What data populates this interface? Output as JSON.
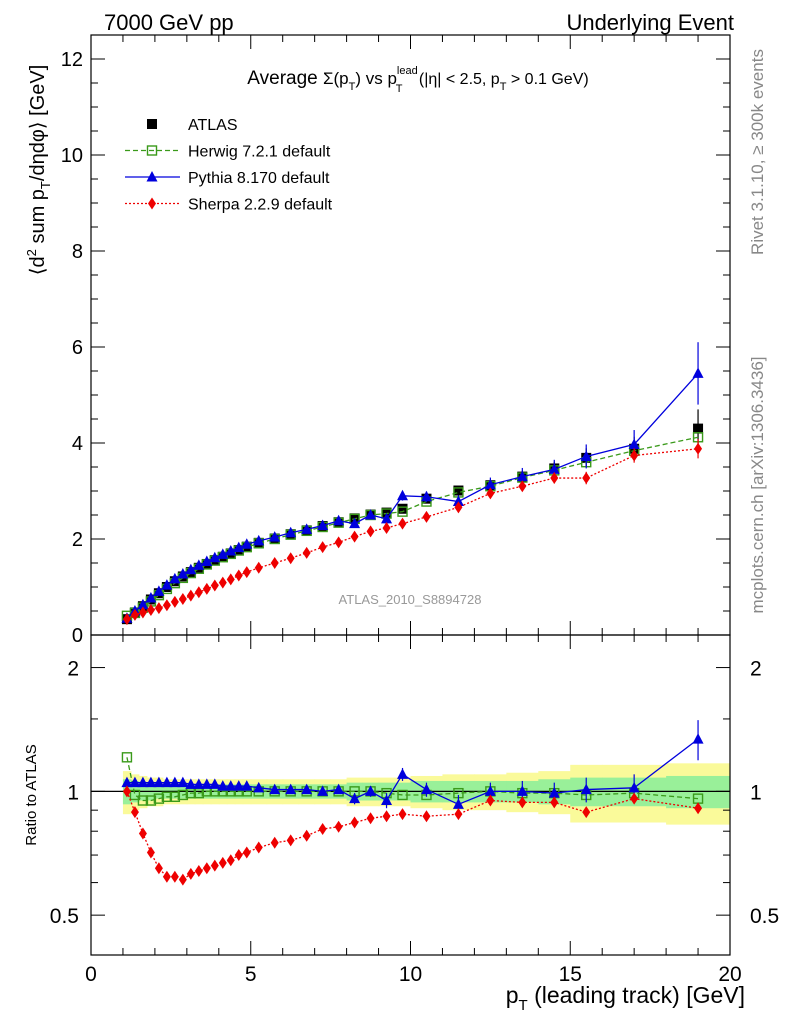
{
  "header": {
    "left": "7000 GeV pp",
    "right": "Underlying Event"
  },
  "side_labels": {
    "rivet": "Rivet 3.1.10, ≥ 300k events",
    "mcplots": "mcplots.cern.ch [arXiv:1306.3436]"
  },
  "watermark": "ATLAS_2010_S8894728",
  "colors": {
    "ATLAS": "#000000",
    "Herwig": "#3a9a1a",
    "Pythia": "#0000dd",
    "Sherpa": "#ee0000",
    "band_inner": "#99f099",
    "band_outer": "#fafa9a"
  },
  "chart_data": [
    {
      "type": "line",
      "title": "Average Σ(pT) vs pT^lead (|η| < 2.5, pT > 0.1 GeV)",
      "ylabel": "⟨d² sum pT/dηdφ⟩ [GeV]",
      "xlim": [
        0,
        20
      ],
      "ylim": [
        0,
        12.5
      ],
      "yticks": [
        "0",
        "2",
        "4",
        "6",
        "8",
        "10",
        "12"
      ],
      "legend_position": "top-left",
      "x": [
        1.125,
        1.375,
        1.625,
        1.875,
        2.125,
        2.375,
        2.625,
        2.875,
        3.125,
        3.375,
        3.625,
        3.875,
        4.125,
        4.375,
        4.625,
        4.875,
        5.25,
        5.75,
        6.25,
        6.75,
        7.25,
        7.75,
        8.25,
        8.75,
        9.25,
        9.75,
        10.5,
        11.5,
        12.5,
        13.5,
        14.5,
        15.5,
        17.0,
        19.0
      ],
      "series": [
        {
          "name": "ATLAS",
          "marker": "square",
          "values": [
            0.33,
            0.47,
            0.6,
            0.74,
            0.87,
            1.0,
            1.12,
            1.22,
            1.31,
            1.4,
            1.48,
            1.56,
            1.63,
            1.7,
            1.77,
            1.84,
            1.92,
            2.01,
            2.1,
            2.18,
            2.27,
            2.35,
            2.43,
            2.51,
            2.55,
            2.63,
            2.84,
            3.01,
            3.12,
            3.3,
            3.47,
            3.69,
            3.88,
            4.3
          ],
          "err": [
            0.02,
            0.02,
            0.02,
            0.02,
            0.02,
            0.02,
            0.02,
            0.02,
            0.02,
            0.02,
            0.02,
            0.02,
            0.03,
            0.03,
            0.03,
            0.03,
            0.03,
            0.03,
            0.03,
            0.04,
            0.04,
            0.04,
            0.05,
            0.05,
            0.05,
            0.06,
            0.07,
            0.08,
            0.1,
            0.12,
            0.14,
            0.2,
            0.25,
            0.4
          ]
        },
        {
          "name": "Herwig 7.2.1 default",
          "marker": "open-square",
          "values": [
            0.4,
            0.46,
            0.57,
            0.7,
            0.83,
            0.96,
            1.08,
            1.19,
            1.29,
            1.38,
            1.47,
            1.55,
            1.62,
            1.69,
            1.76,
            1.83,
            1.91,
            2.0,
            2.09,
            2.17,
            2.25,
            2.34,
            2.42,
            2.5,
            2.53,
            2.57,
            2.78,
            2.97,
            3.1,
            3.28,
            3.43,
            3.6,
            3.84,
            4.12
          ]
        },
        {
          "name": "Pythia 8.170 default",
          "marker": "triangle",
          "values": [
            0.35,
            0.5,
            0.63,
            0.77,
            0.91,
            1.04,
            1.17,
            1.27,
            1.36,
            1.45,
            1.53,
            1.61,
            1.68,
            1.75,
            1.82,
            1.89,
            1.96,
            2.04,
            2.13,
            2.2,
            2.28,
            2.38,
            2.32,
            2.5,
            2.42,
            2.9,
            2.88,
            2.78,
            3.13,
            3.3,
            3.45,
            3.72,
            3.97,
            5.45
          ],
          "err": [
            0.02,
            0.02,
            0.02,
            0.02,
            0.02,
            0.02,
            0.02,
            0.02,
            0.02,
            0.02,
            0.02,
            0.02,
            0.02,
            0.02,
            0.03,
            0.03,
            0.03,
            0.03,
            0.04,
            0.04,
            0.05,
            0.06,
            0.07,
            0.08,
            0.09,
            0.1,
            0.11,
            0.13,
            0.15,
            0.18,
            0.2,
            0.25,
            0.3,
            0.65
          ]
        },
        {
          "name": "Sherpa 2.2.9 default",
          "marker": "diamond",
          "values": [
            0.33,
            0.42,
            0.47,
            0.52,
            0.56,
            0.62,
            0.69,
            0.75,
            0.82,
            0.89,
            0.96,
            1.03,
            1.09,
            1.16,
            1.24,
            1.31,
            1.4,
            1.5,
            1.6,
            1.71,
            1.83,
            1.93,
            2.05,
            2.16,
            2.23,
            2.32,
            2.46,
            2.66,
            2.95,
            3.1,
            3.27,
            3.27,
            3.74,
            3.88
          ],
          "err": [
            0.02,
            0.02,
            0.02,
            0.02,
            0.02,
            0.02,
            0.02,
            0.02,
            0.02,
            0.02,
            0.02,
            0.02,
            0.02,
            0.02,
            0.03,
            0.03,
            0.03,
            0.03,
            0.03,
            0.04,
            0.04,
            0.04,
            0.05,
            0.05,
            0.06,
            0.06,
            0.07,
            0.08,
            0.09,
            0.1,
            0.11,
            0.13,
            0.15,
            0.2
          ]
        }
      ]
    },
    {
      "type": "line",
      "ylabel": "Ratio to ATLAS",
      "xlabel": "pT (leading track) [GeV]",
      "xlim": [
        0,
        20
      ],
      "ylim": [
        0.4,
        2.4
      ],
      "yscale": "log",
      "yticks": [
        "0.5",
        "1",
        "2"
      ],
      "xticks": [
        "0",
        "5",
        "10",
        "15",
        "20"
      ],
      "reference_band": {
        "edges": [
          1.0,
          1.25,
          1.5,
          1.75,
          2.0,
          2.25,
          2.5,
          2.75,
          3.0,
          3.25,
          3.5,
          3.75,
          4.0,
          4.25,
          4.5,
          4.75,
          5.0,
          5.5,
          6.0,
          6.5,
          7.0,
          7.5,
          8.0,
          8.5,
          9.0,
          9.5,
          10.0,
          11.0,
          12.0,
          13.0,
          14.0,
          15.0,
          16.0,
          18.0,
          20.0
        ],
        "inner": [
          0.07,
          0.06,
          0.05,
          0.05,
          0.04,
          0.04,
          0.04,
          0.04,
          0.04,
          0.04,
          0.04,
          0.04,
          0.04,
          0.04,
          0.04,
          0.04,
          0.04,
          0.04,
          0.04,
          0.04,
          0.04,
          0.04,
          0.05,
          0.05,
          0.05,
          0.05,
          0.06,
          0.06,
          0.06,
          0.06,
          0.07,
          0.08,
          0.08,
          0.09
        ],
        "outer": [
          0.12,
          0.1,
          0.09,
          0.08,
          0.08,
          0.07,
          0.07,
          0.07,
          0.07,
          0.07,
          0.07,
          0.07,
          0.07,
          0.07,
          0.07,
          0.07,
          0.07,
          0.07,
          0.07,
          0.07,
          0.07,
          0.07,
          0.08,
          0.08,
          0.08,
          0.08,
          0.09,
          0.1,
          0.1,
          0.11,
          0.12,
          0.16,
          0.16,
          0.17
        ]
      },
      "series": [
        {
          "name": "Herwig 7.2.1 default",
          "values": [
            1.21,
            0.98,
            0.95,
            0.95,
            0.96,
            0.97,
            0.97,
            0.98,
            0.99,
            0.99,
            1.0,
            1.0,
            1.0,
            1.0,
            1.0,
            1.0,
            1.0,
            1.0,
            1.0,
            1.0,
            1.0,
            1.0,
            1.0,
            1.0,
            0.99,
            0.98,
            0.98,
            0.99,
            1.0,
            0.99,
            0.99,
            0.98,
            0.99,
            0.96
          ]
        },
        {
          "name": "Pythia 8.170 default",
          "values": [
            1.05,
            1.05,
            1.05,
            1.05,
            1.05,
            1.05,
            1.05,
            1.05,
            1.04,
            1.04,
            1.04,
            1.04,
            1.03,
            1.03,
            1.03,
            1.03,
            1.02,
            1.01,
            1.01,
            1.01,
            1.0,
            1.01,
            0.96,
            1.0,
            0.95,
            1.1,
            1.01,
            0.93,
            1.0,
            1.0,
            0.99,
            1.01,
            1.02,
            1.34
          ],
          "err": [
            0.02,
            0.02,
            0.02,
            0.02,
            0.02,
            0.02,
            0.02,
            0.02,
            0.02,
            0.02,
            0.02,
            0.02,
            0.02,
            0.02,
            0.02,
            0.02,
            0.02,
            0.02,
            0.02,
            0.02,
            0.02,
            0.02,
            0.03,
            0.03,
            0.04,
            0.04,
            0.04,
            0.05,
            0.05,
            0.06,
            0.06,
            0.07,
            0.08,
            0.15
          ]
        },
        {
          "name": "Sherpa 2.2.9 default",
          "values": [
            1.0,
            0.89,
            0.79,
            0.71,
            0.65,
            0.62,
            0.62,
            0.61,
            0.63,
            0.64,
            0.65,
            0.66,
            0.67,
            0.68,
            0.7,
            0.71,
            0.73,
            0.75,
            0.76,
            0.78,
            0.81,
            0.82,
            0.84,
            0.86,
            0.87,
            0.88,
            0.87,
            0.88,
            0.95,
            0.94,
            0.94,
            0.89,
            0.96,
            0.91
          ]
        }
      ]
    }
  ]
}
